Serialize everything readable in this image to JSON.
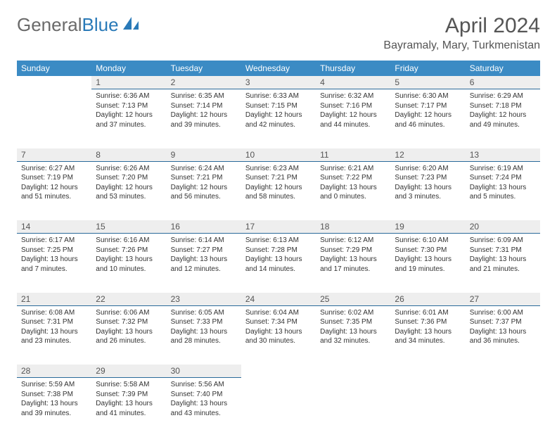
{
  "brand": {
    "part1": "General",
    "part2": "Blue"
  },
  "title": "April 2024",
  "location": "Bayramaly, Mary, Turkmenistan",
  "colors": {
    "header_bg": "#3b8bc4",
    "header_text": "#ffffff",
    "daynum_bg": "#eeeeee",
    "daynum_border": "#2a6a9a",
    "text": "#333333",
    "title_text": "#555555",
    "brand_gray": "#6a6a6a",
    "brand_blue": "#2a7ab8"
  },
  "day_names": [
    "Sunday",
    "Monday",
    "Tuesday",
    "Wednesday",
    "Thursday",
    "Friday",
    "Saturday"
  ],
  "weeks": [
    [
      null,
      {
        "n": "1",
        "sr": "6:36 AM",
        "ss": "7:13 PM",
        "dl": "12 hours and 37 minutes."
      },
      {
        "n": "2",
        "sr": "6:35 AM",
        "ss": "7:14 PM",
        "dl": "12 hours and 39 minutes."
      },
      {
        "n": "3",
        "sr": "6:33 AM",
        "ss": "7:15 PM",
        "dl": "12 hours and 42 minutes."
      },
      {
        "n": "4",
        "sr": "6:32 AM",
        "ss": "7:16 PM",
        "dl": "12 hours and 44 minutes."
      },
      {
        "n": "5",
        "sr": "6:30 AM",
        "ss": "7:17 PM",
        "dl": "12 hours and 46 minutes."
      },
      {
        "n": "6",
        "sr": "6:29 AM",
        "ss": "7:18 PM",
        "dl": "12 hours and 49 minutes."
      }
    ],
    [
      {
        "n": "7",
        "sr": "6:27 AM",
        "ss": "7:19 PM",
        "dl": "12 hours and 51 minutes."
      },
      {
        "n": "8",
        "sr": "6:26 AM",
        "ss": "7:20 PM",
        "dl": "12 hours and 53 minutes."
      },
      {
        "n": "9",
        "sr": "6:24 AM",
        "ss": "7:21 PM",
        "dl": "12 hours and 56 minutes."
      },
      {
        "n": "10",
        "sr": "6:23 AM",
        "ss": "7:21 PM",
        "dl": "12 hours and 58 minutes."
      },
      {
        "n": "11",
        "sr": "6:21 AM",
        "ss": "7:22 PM",
        "dl": "13 hours and 0 minutes."
      },
      {
        "n": "12",
        "sr": "6:20 AM",
        "ss": "7:23 PM",
        "dl": "13 hours and 3 minutes."
      },
      {
        "n": "13",
        "sr": "6:19 AM",
        "ss": "7:24 PM",
        "dl": "13 hours and 5 minutes."
      }
    ],
    [
      {
        "n": "14",
        "sr": "6:17 AM",
        "ss": "7:25 PM",
        "dl": "13 hours and 7 minutes."
      },
      {
        "n": "15",
        "sr": "6:16 AM",
        "ss": "7:26 PM",
        "dl": "13 hours and 10 minutes."
      },
      {
        "n": "16",
        "sr": "6:14 AM",
        "ss": "7:27 PM",
        "dl": "13 hours and 12 minutes."
      },
      {
        "n": "17",
        "sr": "6:13 AM",
        "ss": "7:28 PM",
        "dl": "13 hours and 14 minutes."
      },
      {
        "n": "18",
        "sr": "6:12 AM",
        "ss": "7:29 PM",
        "dl": "13 hours and 17 minutes."
      },
      {
        "n": "19",
        "sr": "6:10 AM",
        "ss": "7:30 PM",
        "dl": "13 hours and 19 minutes."
      },
      {
        "n": "20",
        "sr": "6:09 AM",
        "ss": "7:31 PM",
        "dl": "13 hours and 21 minutes."
      }
    ],
    [
      {
        "n": "21",
        "sr": "6:08 AM",
        "ss": "7:31 PM",
        "dl": "13 hours and 23 minutes."
      },
      {
        "n": "22",
        "sr": "6:06 AM",
        "ss": "7:32 PM",
        "dl": "13 hours and 26 minutes."
      },
      {
        "n": "23",
        "sr": "6:05 AM",
        "ss": "7:33 PM",
        "dl": "13 hours and 28 minutes."
      },
      {
        "n": "24",
        "sr": "6:04 AM",
        "ss": "7:34 PM",
        "dl": "13 hours and 30 minutes."
      },
      {
        "n": "25",
        "sr": "6:02 AM",
        "ss": "7:35 PM",
        "dl": "13 hours and 32 minutes."
      },
      {
        "n": "26",
        "sr": "6:01 AM",
        "ss": "7:36 PM",
        "dl": "13 hours and 34 minutes."
      },
      {
        "n": "27",
        "sr": "6:00 AM",
        "ss": "7:37 PM",
        "dl": "13 hours and 36 minutes."
      }
    ],
    [
      {
        "n": "28",
        "sr": "5:59 AM",
        "ss": "7:38 PM",
        "dl": "13 hours and 39 minutes."
      },
      {
        "n": "29",
        "sr": "5:58 AM",
        "ss": "7:39 PM",
        "dl": "13 hours and 41 minutes."
      },
      {
        "n": "30",
        "sr": "5:56 AM",
        "ss": "7:40 PM",
        "dl": "13 hours and 43 minutes."
      },
      null,
      null,
      null,
      null
    ]
  ],
  "labels": {
    "sunrise": "Sunrise:",
    "sunset": "Sunset:",
    "daylight": "Daylight:"
  }
}
